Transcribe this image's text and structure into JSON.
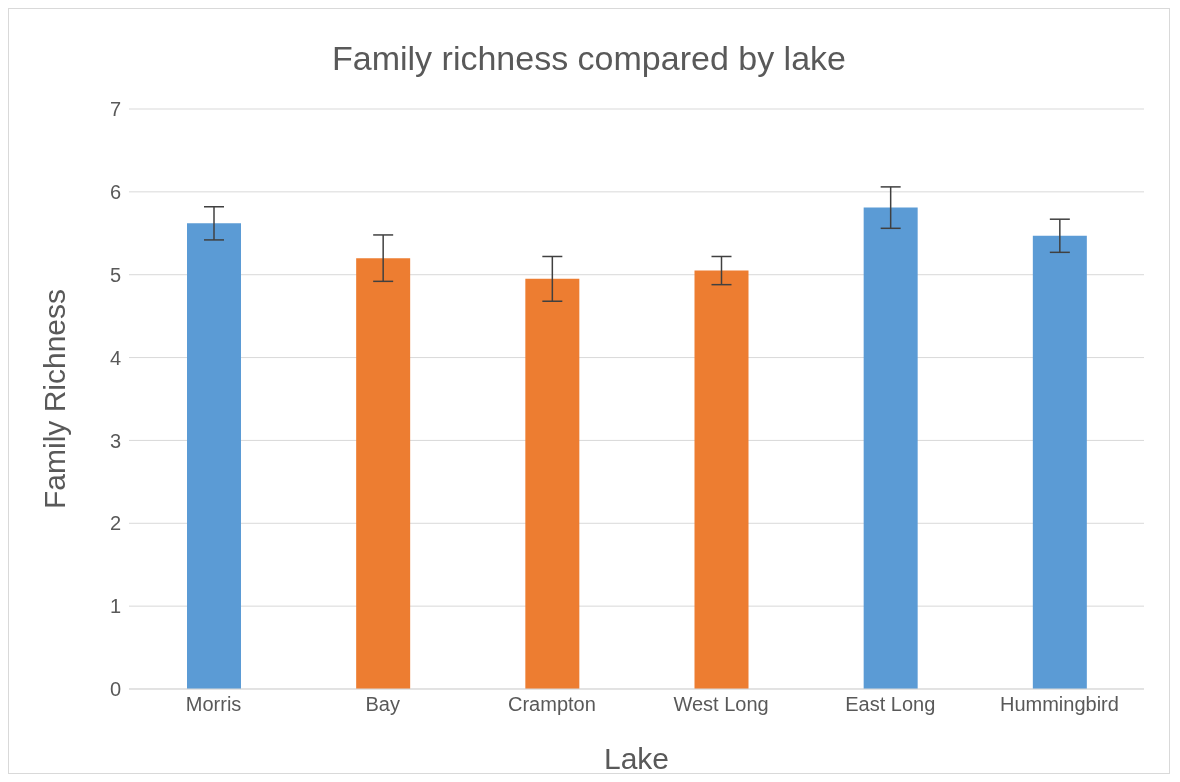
{
  "chart_data": {
    "type": "bar",
    "title": "Family richness compared by lake",
    "xlabel": "Lake",
    "ylabel": "Family Richness",
    "categories": [
      "Morris",
      "Bay",
      "Crampton",
      "West Long",
      "East Long",
      "Hummingbird"
    ],
    "values": [
      5.62,
      5.2,
      4.95,
      5.05,
      5.81,
      5.47
    ],
    "errors": [
      0.2,
      0.28,
      0.27,
      0.17,
      0.25,
      0.2
    ],
    "colors": [
      "#5b9bd5",
      "#ed7d31",
      "#ed7d31",
      "#ed7d31",
      "#5b9bd5",
      "#5b9bd5"
    ],
    "ylim": [
      0,
      7
    ],
    "yticks": [
      0,
      1,
      2,
      3,
      4,
      5,
      6,
      7
    ],
    "grid": "y"
  }
}
